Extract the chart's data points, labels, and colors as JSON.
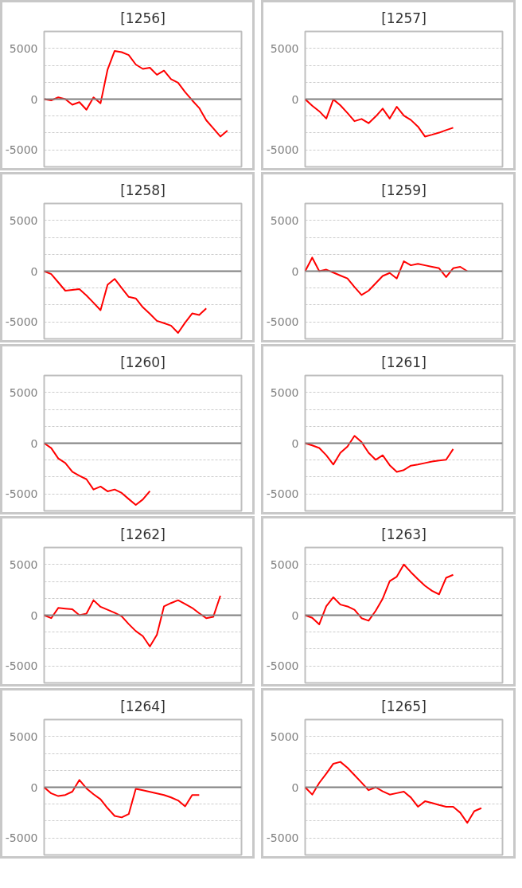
{
  "chart_data": [
    {
      "type": "line",
      "title": "[1256]",
      "categories": [
        null,
        null,
        null,
        null,
        null,
        null,
        null,
        null,
        null,
        null,
        null,
        null,
        null,
        null,
        null,
        null,
        null,
        null,
        null,
        null,
        null,
        null,
        null,
        null,
        null,
        null,
        null,
        null,
        null
      ],
      "series": [
        {
          "color": "#ff0000",
          "values": [
            0,
            -115,
            175,
            0,
            -550,
            -290,
            -1040,
            175,
            -405,
            2920,
            4750,
            4630,
            4340,
            3410,
            2980,
            3100,
            2400,
            2810,
            1970,
            1620,
            695,
            -115,
            -870,
            -2080,
            -2870,
            -3680,
            -3100,
            null,
            null
          ]
        }
      ],
      "ylim": [
        -6667,
        6667
      ],
      "yticks": [
        -5000,
        {
          "value": -3333,
          "label": null
        },
        {
          "value": -1667,
          "label": null
        },
        0,
        {
          "value": 1667,
          "label": null
        },
        {
          "value": 3333,
          "label": null
        },
        5000
      ],
      "grid": "y",
      "tick_labels": "y",
      "ref_lines": [
        {
          "axis": "y",
          "value": 0,
          "color": "#808080"
        }
      ]
    },
    {
      "type": "line",
      "title": "[1257]",
      "categories": [
        null,
        null,
        null,
        null,
        null,
        null,
        null,
        null,
        null,
        null,
        null,
        null,
        null,
        null,
        null,
        null,
        null,
        null,
        null,
        null,
        null,
        null,
        null,
        null,
        null,
        null,
        null,
        null,
        null
      ],
      "series": [
        {
          "color": "#ff0000",
          "values": [
            0,
            -640,
            -1190,
            -1910,
            -30,
            -610,
            -1360,
            -2170,
            -1950,
            -2370,
            -1710,
            -930,
            -1910,
            -750,
            -1620,
            -2050,
            -2700,
            -3680,
            -3500,
            -3300,
            -3050,
            -2810,
            null,
            null,
            null,
            null,
            null,
            null,
            null
          ]
        }
      ],
      "ylim": [
        -6667,
        6667
      ],
      "yticks": [
        -5000,
        {
          "value": -3333,
          "label": null
        },
        {
          "value": -1667,
          "label": null
        },
        0,
        {
          "value": 1667,
          "label": null
        },
        {
          "value": 3333,
          "label": null
        },
        5000
      ],
      "grid": "y",
      "tick_labels": "y",
      "ref_lines": [
        {
          "axis": "y",
          "value": 0,
          "color": "#808080"
        }
      ]
    },
    {
      "type": "line",
      "title": "[1258]",
      "categories": [
        null,
        null,
        null,
        null,
        null,
        null,
        null,
        null,
        null,
        null,
        null,
        null,
        null,
        null,
        null,
        null,
        null,
        null,
        null,
        null,
        null,
        null,
        null,
        null,
        null,
        null,
        null,
        null,
        null
      ],
      "series": [
        {
          "color": "#ff0000",
          "values": [
            0,
            -290,
            -1100,
            -1920,
            -1850,
            -1770,
            -2390,
            -3110,
            -3840,
            -1340,
            -760,
            -1650,
            -2530,
            -2680,
            -3550,
            -4200,
            -4890,
            -5120,
            -5360,
            -6080,
            -5070,
            -4160,
            -4310,
            -3660,
            null,
            null,
            null,
            null,
            null
          ]
        }
      ],
      "ylim": [
        -6667,
        6667
      ],
      "yticks": [
        -5000,
        {
          "value": -3333,
          "label": null
        },
        {
          "value": -1667,
          "label": null
        },
        0,
        {
          "value": 1667,
          "label": null
        },
        {
          "value": 3333,
          "label": null
        },
        5000
      ],
      "grid": "y",
      "tick_labels": "y",
      "ref_lines": [
        {
          "axis": "y",
          "value": 0,
          "color": "#808080"
        }
      ]
    },
    {
      "type": "line",
      "title": "[1259]",
      "categories": [
        null,
        null,
        null,
        null,
        null,
        null,
        null,
        null,
        null,
        null,
        null,
        null,
        null,
        null,
        null,
        null,
        null,
        null,
        null,
        null,
        null,
        null,
        null,
        null,
        null,
        null,
        null,
        null,
        null
      ],
      "series": [
        {
          "color": "#ff0000",
          "values": [
            0,
            1340,
            0,
            150,
            -140,
            -430,
            -720,
            -1560,
            -2350,
            -1920,
            -1200,
            -470,
            -180,
            -720,
            980,
            580,
            720,
            580,
            430,
            290,
            -580,
            290,
            430,
            0,
            null,
            null,
            null,
            null,
            null
          ]
        }
      ],
      "ylim": [
        -6667,
        6667
      ],
      "yticks": [
        -5000,
        {
          "value": -3333,
          "label": null
        },
        {
          "value": -1667,
          "label": null
        },
        0,
        {
          "value": 1667,
          "label": null
        },
        {
          "value": 3333,
          "label": null
        },
        5000
      ],
      "grid": "y",
      "tick_labels": "y",
      "ref_lines": [
        {
          "axis": "y",
          "value": 0,
          "color": "#808080"
        }
      ]
    },
    {
      "type": "line",
      "title": "[1260]",
      "categories": [
        null,
        null,
        null,
        null,
        null,
        null,
        null,
        null,
        null,
        null,
        null,
        null,
        null,
        null,
        null,
        null,
        null,
        null,
        null,
        null,
        null,
        null,
        null,
        null,
        null,
        null,
        null,
        null,
        null
      ],
      "series": [
        {
          "color": "#ff0000",
          "values": [
            0,
            -480,
            -1500,
            -1950,
            -2820,
            -3200,
            -3550,
            -4560,
            -4270,
            -4740,
            -4560,
            -4900,
            -5500,
            -6080,
            -5540,
            -4710,
            null,
            null,
            null,
            null,
            null,
            null,
            null,
            null,
            null,
            null,
            null,
            null,
            null
          ]
        }
      ],
      "ylim": [
        -6667,
        6667
      ],
      "yticks": [
        -5000,
        {
          "value": -3333,
          "label": null
        },
        {
          "value": -1667,
          "label": null
        },
        0,
        {
          "value": 1667,
          "label": null
        },
        {
          "value": 3333,
          "label": null
        },
        5000
      ],
      "grid": "y",
      "tick_labels": "y",
      "ref_lines": [
        {
          "axis": "y",
          "value": 0,
          "color": "#808080"
        }
      ]
    },
    {
      "type": "line",
      "title": "[1261]",
      "categories": [
        null,
        null,
        null,
        null,
        null,
        null,
        null,
        null,
        null,
        null,
        null,
        null,
        null,
        null,
        null,
        null,
        null,
        null,
        null,
        null,
        null,
        null,
        null,
        null,
        null,
        null,
        null,
        null,
        null
      ],
      "series": [
        {
          "color": "#ff0000",
          "values": [
            0,
            -220,
            -470,
            -1190,
            -2100,
            -940,
            -330,
            720,
            110,
            -940,
            -1630,
            -1190,
            -2170,
            -2820,
            -2640,
            -2210,
            -2100,
            -1950,
            -1800,
            -1700,
            -1630,
            -580,
            null,
            null,
            null,
            null,
            null,
            null,
            null
          ]
        }
      ],
      "ylim": [
        -6667,
        6667
      ],
      "yticks": [
        -5000,
        {
          "value": -3333,
          "label": null
        },
        {
          "value": -1667,
          "label": null
        },
        0,
        {
          "value": 1667,
          "label": null
        },
        {
          "value": 3333,
          "label": null
        },
        5000
      ],
      "grid": "y",
      "tick_labels": "y",
      "ref_lines": [
        {
          "axis": "y",
          "value": 0,
          "color": "#808080"
        }
      ]
    },
    {
      "type": "line",
      "title": "[1262]",
      "categories": [
        null,
        null,
        null,
        null,
        null,
        null,
        null,
        null,
        null,
        null,
        null,
        null,
        null,
        null,
        null,
        null,
        null,
        null,
        null,
        null,
        null,
        null,
        null,
        null,
        null,
        null,
        null,
        null,
        null
      ],
      "series": [
        {
          "color": "#ff0000",
          "values": [
            0,
            -290,
            720,
            650,
            580,
            0,
            150,
            1480,
            830,
            540,
            250,
            -110,
            -870,
            -1560,
            -2060,
            -3080,
            -1920,
            870,
            1200,
            1480,
            1100,
            720,
            200,
            -290,
            -150,
            1920,
            null,
            null,
            null
          ]
        }
      ],
      "ylim": [
        -6667,
        6667
      ],
      "yticks": [
        -5000,
        {
          "value": -3333,
          "label": null
        },
        {
          "value": -1667,
          "label": null
        },
        0,
        {
          "value": 1667,
          "label": null
        },
        {
          "value": 3333,
          "label": null
        },
        5000
      ],
      "grid": "y",
      "tick_labels": "y",
      "ref_lines": [
        {
          "axis": "y",
          "value": 0,
          "color": "#808080"
        }
      ]
    },
    {
      "type": "line",
      "title": "[1263]",
      "categories": [
        null,
        null,
        null,
        null,
        null,
        null,
        null,
        null,
        null,
        null,
        null,
        null,
        null,
        null,
        null,
        null,
        null,
        null,
        null,
        null,
        null,
        null,
        null,
        null,
        null,
        null,
        null,
        null,
        null
      ],
      "series": [
        {
          "color": "#ff0000",
          "values": [
            0,
            -250,
            -900,
            900,
            1770,
            1050,
            870,
            540,
            -290,
            -540,
            430,
            1630,
            3370,
            3800,
            5000,
            4240,
            3550,
            2900,
            2400,
            2060,
            3690,
            3980,
            null,
            null,
            null,
            null,
            null,
            null,
            null
          ]
        }
      ],
      "ylim": [
        -6667,
        6667
      ],
      "yticks": [
        -5000,
        {
          "value": -3333,
          "label": null
        },
        {
          "value": -1667,
          "label": null
        },
        0,
        {
          "value": 1667,
          "label": null
        },
        {
          "value": 3333,
          "label": null
        },
        5000
      ],
      "grid": "y",
      "tick_labels": "y",
      "ref_lines": [
        {
          "axis": "y",
          "value": 0,
          "color": "#808080"
        }
      ]
    },
    {
      "type": "line",
      "title": "[1264]",
      "categories": [
        null,
        null,
        null,
        null,
        null,
        null,
        null,
        null,
        null,
        null,
        null,
        null,
        null,
        null,
        null,
        null,
        null,
        null,
        null,
        null,
        null,
        null,
        null,
        null,
        null,
        null,
        null,
        null,
        null
      ],
      "series": [
        {
          "color": "#ff0000",
          "values": [
            0,
            -600,
            -870,
            -760,
            -430,
            720,
            -110,
            -690,
            -1190,
            -2060,
            -2820,
            -2970,
            -2640,
            -150,
            -300,
            -450,
            -600,
            -760,
            -1000,
            -1300,
            -1880,
            -760,
            -760,
            null,
            null,
            null,
            null,
            null,
            null
          ]
        }
      ],
      "ylim": [
        -6667,
        6667
      ],
      "yticks": [
        -5000,
        {
          "value": -3333,
          "label": null
        },
        {
          "value": -1667,
          "label": null
        },
        0,
        {
          "value": 1667,
          "label": null
        },
        {
          "value": 3333,
          "label": null
        },
        5000
      ],
      "grid": "y",
      "tick_labels": "y",
      "ref_lines": [
        {
          "axis": "y",
          "value": 0,
          "color": "#808080"
        }
      ]
    },
    {
      "type": "line",
      "title": "[1265]",
      "categories": [
        null,
        null,
        null,
        null,
        null,
        null,
        null,
        null,
        null,
        null,
        null,
        null,
        null,
        null,
        null,
        null,
        null,
        null,
        null,
        null,
        null,
        null,
        null,
        null,
        null,
        null,
        null,
        null,
        null
      ],
      "series": [
        {
          "color": "#ff0000",
          "values": [
            0,
            -720,
            430,
            1340,
            2320,
            2500,
            1920,
            1200,
            460,
            -290,
            0,
            -400,
            -720,
            -580,
            -430,
            -1010,
            -1920,
            -1380,
            -1550,
            -1750,
            -1920,
            -1920,
            -2500,
            -3510,
            -2350,
            -2060,
            null,
            null,
            null
          ]
        }
      ],
      "ylim": [
        -6667,
        6667
      ],
      "yticks": [
        -5000,
        {
          "value": -3333,
          "label": null
        },
        {
          "value": -1667,
          "label": null
        },
        0,
        {
          "value": 1667,
          "label": null
        },
        {
          "value": 3333,
          "label": null
        },
        5000
      ],
      "grid": "y",
      "tick_labels": "y",
      "ref_lines": [
        {
          "axis": "y",
          "value": 0,
          "color": "#808080"
        }
      ]
    }
  ]
}
